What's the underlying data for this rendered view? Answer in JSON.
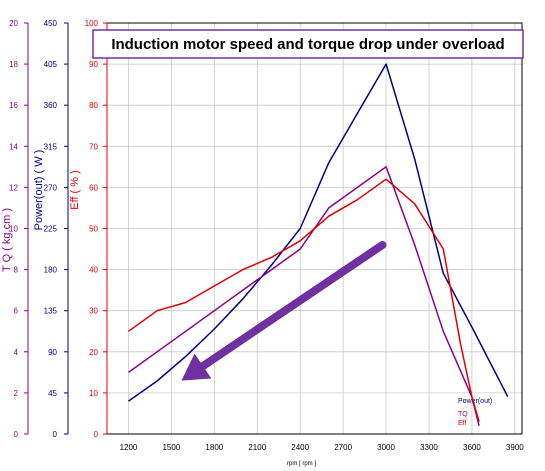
{
  "chart_data": {
    "type": "line",
    "title": "Induction motor speed and torque drop under overload",
    "xlabel": "rpm [ rpm ]",
    "x_ticks": [
      1200,
      1500,
      1800,
      2100,
      2400,
      2700,
      3000,
      3300,
      3600,
      3900
    ],
    "xlim": [
      1050,
      3950
    ],
    "grid": true,
    "axes": {
      "tq": {
        "title": "T Q ( kg.cm )",
        "color": "#8B008B",
        "range": [
          0,
          20
        ],
        "ticks": [
          0,
          2,
          4,
          6,
          8,
          10,
          12,
          14,
          16,
          18,
          20
        ]
      },
      "power": {
        "title": "Power(out) ( W )",
        "color": "#00008B",
        "range": [
          0,
          450
        ],
        "ticks": [
          0,
          45,
          90,
          135,
          180,
          225,
          270,
          315,
          360,
          405,
          450
        ]
      },
      "eff": {
        "title": "Eff ( % )",
        "color": "#E00000",
        "range": [
          0,
          100
        ],
        "ticks": [
          0,
          10,
          20,
          30,
          40,
          50,
          60,
          70,
          80,
          90,
          100
        ]
      }
    },
    "series": [
      {
        "name": "Power(out)",
        "axis": "power",
        "color": "#00008B",
        "points": [
          [
            1200,
            36
          ],
          [
            1400,
            58
          ],
          [
            1600,
            85
          ],
          [
            1800,
            115
          ],
          [
            2000,
            148
          ],
          [
            2200,
            185
          ],
          [
            2400,
            225
          ],
          [
            2600,
            297
          ],
          [
            2800,
            351
          ],
          [
            3000,
            405
          ],
          [
            3200,
            301
          ],
          [
            3400,
            176
          ],
          [
            3600,
            117
          ],
          [
            3850,
            41
          ]
        ]
      },
      {
        "name": "TQ",
        "axis": "tq",
        "color": "#8B008B",
        "points": [
          [
            1200,
            3
          ],
          [
            1400,
            4
          ],
          [
            1600,
            5
          ],
          [
            1800,
            6
          ],
          [
            2000,
            7
          ],
          [
            2200,
            8
          ],
          [
            2400,
            9
          ],
          [
            2600,
            11
          ],
          [
            2800,
            12
          ],
          [
            3000,
            13
          ],
          [
            3200,
            9.2
          ],
          [
            3400,
            5
          ],
          [
            3600,
            1.8
          ],
          [
            3650,
            0.4
          ]
        ]
      },
      {
        "name": "Eff",
        "axis": "eff",
        "color": "#E00000",
        "points": [
          [
            1200,
            25
          ],
          [
            1400,
            30
          ],
          [
            1600,
            32
          ],
          [
            1800,
            36
          ],
          [
            2000,
            40
          ],
          [
            2200,
            43
          ],
          [
            2400,
            47
          ],
          [
            2600,
            53
          ],
          [
            2800,
            57
          ],
          [
            3000,
            62
          ],
          [
            3200,
            56
          ],
          [
            3400,
            45
          ],
          [
            3520,
            22
          ],
          [
            3600,
            9
          ],
          [
            3650,
            3
          ]
        ]
      }
    ],
    "annotation": {
      "type": "arrow",
      "color": "#7030A0",
      "from": [
        2975,
        46
      ],
      "to": [
        1570,
        13
      ]
    }
  },
  "colors": {
    "grid": "#C8C8C8",
    "plot_border": "#000000",
    "title_box_border": "#7030A0"
  }
}
